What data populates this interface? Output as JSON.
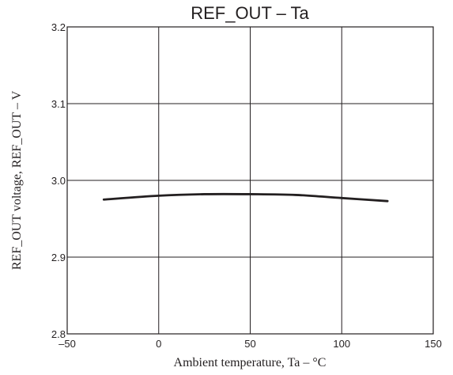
{
  "chart_data": {
    "type": "line",
    "title": "REF_OUT  –  Ta",
    "xlabel": "Ambient temperature,  Ta  –  °C",
    "ylabel": "REF_OUT voltage, REF_OUT  –  V",
    "xlim": [
      -50,
      150
    ],
    "ylim": [
      2.8,
      3.2
    ],
    "xticks": [
      -50,
      0,
      50,
      100,
      150
    ],
    "xtick_labels": [
      "–50",
      "0",
      "50",
      "100",
      "150"
    ],
    "yticks": [
      2.8,
      2.9,
      3.0,
      3.1,
      3.2
    ],
    "ytick_labels": [
      "2.8",
      "2.9",
      "3.0",
      "3.1",
      "3.2"
    ],
    "grid": true,
    "series": [
      {
        "x": [
          -30,
          0,
          25,
          50,
          75,
          100,
          125
        ],
        "y": [
          2.975,
          2.98,
          2.982,
          2.982,
          2.981,
          2.977,
          2.973
        ]
      }
    ]
  }
}
